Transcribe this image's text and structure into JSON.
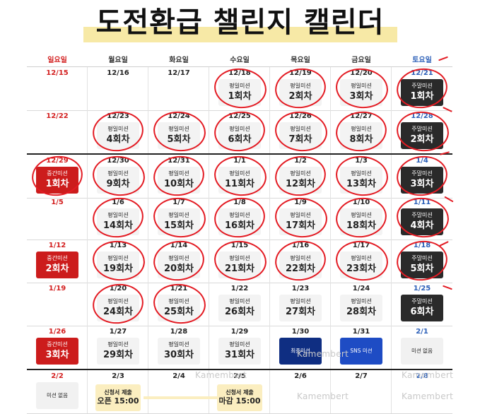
{
  "title": "도전환급 챌린지 캘린더",
  "weekdays": [
    "일요일",
    "월요일",
    "화요일",
    "수요일",
    "목요일",
    "금요일",
    "토요일"
  ],
  "weeks": [
    {
      "dates": [
        "12/15",
        "12/16",
        "12/17",
        "12/18",
        "12/19",
        "12/20",
        "12/21"
      ],
      "missions": [
        null,
        null,
        null,
        {
          "kind": "weekday",
          "label": "평일미션",
          "count": "1회차"
        },
        {
          "kind": "weekday",
          "label": "평일미션",
          "count": "2회차"
        },
        {
          "kind": "weekday",
          "label": "평일미션",
          "count": "3회차"
        },
        {
          "kind": "weekend",
          "label": "주말미션",
          "count": "1회차"
        }
      ]
    },
    {
      "dates": [
        "12/22",
        "12/23",
        "12/24",
        "12/25",
        "12/26",
        "12/27",
        "12/28"
      ],
      "missions": [
        null,
        {
          "kind": "weekday",
          "label": "평일미션",
          "count": "4회차"
        },
        {
          "kind": "weekday",
          "label": "평일미션",
          "count": "5회차"
        },
        {
          "kind": "weekday",
          "label": "평일미션",
          "count": "6회차"
        },
        {
          "kind": "weekday",
          "label": "평일미션",
          "count": "7회차"
        },
        {
          "kind": "weekday",
          "label": "평일미션",
          "count": "8회차"
        },
        {
          "kind": "weekend",
          "label": "주말미션",
          "count": "2회차"
        }
      ]
    },
    {
      "dates": [
        "12/29",
        "12/30",
        "12/31",
        "1/1",
        "1/2",
        "1/3",
        "1/4"
      ],
      "missions": [
        {
          "kind": "midterm",
          "label": "중간미션",
          "count": "1회차"
        },
        {
          "kind": "weekday",
          "label": "평일미션",
          "count": "9회차"
        },
        {
          "kind": "weekday",
          "label": "평일미션",
          "count": "10회차"
        },
        {
          "kind": "weekday",
          "label": "평일미션",
          "count": "11회차"
        },
        {
          "kind": "weekday",
          "label": "평일미션",
          "count": "12회차"
        },
        {
          "kind": "weekday",
          "label": "평일미션",
          "count": "13회차"
        },
        {
          "kind": "weekend",
          "label": "주말미션",
          "count": "3회차"
        }
      ]
    },
    {
      "dates": [
        "1/5",
        "1/6",
        "1/7",
        "1/8",
        "1/9",
        "1/10",
        "1/11"
      ],
      "missions": [
        null,
        {
          "kind": "weekday",
          "label": "평일미션",
          "count": "14회차"
        },
        {
          "kind": "weekday",
          "label": "평일미션",
          "count": "15회차"
        },
        {
          "kind": "weekday",
          "label": "평일미션",
          "count": "16회차"
        },
        {
          "kind": "weekday",
          "label": "평일미션",
          "count": "17회차"
        },
        {
          "kind": "weekday",
          "label": "평일미션",
          "count": "18회차"
        },
        {
          "kind": "weekend",
          "label": "주말미션",
          "count": "4회차"
        }
      ]
    },
    {
      "dates": [
        "1/12",
        "1/13",
        "1/14",
        "1/15",
        "1/16",
        "1/17",
        "1/18"
      ],
      "missions": [
        {
          "kind": "midterm",
          "label": "중간미션",
          "count": "2회차"
        },
        {
          "kind": "weekday",
          "label": "평일미션",
          "count": "19회차"
        },
        {
          "kind": "weekday",
          "label": "평일미션",
          "count": "20회차"
        },
        {
          "kind": "weekday",
          "label": "평일미션",
          "count": "21회차"
        },
        {
          "kind": "weekday",
          "label": "평일미션",
          "count": "22회차"
        },
        {
          "kind": "weekday",
          "label": "평일미션",
          "count": "23회차"
        },
        {
          "kind": "weekend",
          "label": "주말미션",
          "count": "5회차"
        }
      ]
    },
    {
      "dates": [
        "1/19",
        "1/20",
        "1/21",
        "1/22",
        "1/23",
        "1/24",
        "1/25"
      ],
      "missions": [
        null,
        {
          "kind": "weekday",
          "label": "평일미션",
          "count": "24회차"
        },
        {
          "kind": "weekday",
          "label": "평일미션",
          "count": "25회차"
        },
        {
          "kind": "weekday",
          "label": "평일미션",
          "count": "26회차"
        },
        {
          "kind": "weekday",
          "label": "평일미션",
          "count": "27회차"
        },
        {
          "kind": "weekday",
          "label": "평일미션",
          "count": "28회차"
        },
        {
          "kind": "weekend",
          "label": "주말미션",
          "count": "6회차"
        }
      ]
    },
    {
      "dates": [
        "1/26",
        "1/27",
        "1/28",
        "1/29",
        "1/30",
        "1/31",
        "2/1"
      ],
      "missions": [
        {
          "kind": "midterm",
          "label": "중간미션",
          "count": "3회차"
        },
        {
          "kind": "weekday",
          "label": "평일미션",
          "count": "29회차"
        },
        {
          "kind": "weekday",
          "label": "평일미션",
          "count": "30회차"
        },
        {
          "kind": "weekday",
          "label": "평일미션",
          "count": "31회차"
        },
        {
          "kind": "final",
          "label": "최종미션",
          "count": ""
        },
        {
          "kind": "sns",
          "label": "SNS 미션",
          "count": ""
        },
        {
          "kind": "empty",
          "label": "미션 없음",
          "count": ""
        }
      ]
    },
    {
      "dates": [
        "2/2",
        "2/3",
        "2/4",
        "2/5",
        "2/6",
        "2/7",
        "2/8"
      ],
      "missions": [
        {
          "kind": "empty",
          "label": "미션 없음",
          "count": ""
        },
        null,
        null,
        null,
        null,
        null,
        null
      ]
    }
  ],
  "application": {
    "open_label": "신청서 제출",
    "open_time": "오픈 15:00",
    "close_label": "신청서 제출",
    "close_time": "마감 15:00"
  },
  "watermark": "Kamembert",
  "completed": [
    [
      3,
      4,
      5,
      6
    ],
    [
      1,
      2,
      3,
      4,
      5,
      6
    ],
    [
      0,
      1,
      2,
      3,
      4,
      5,
      6
    ],
    [
      1,
      2,
      3,
      4,
      5,
      6
    ],
    [
      1,
      2,
      3,
      4,
      5,
      6
    ],
    [
      1,
      2
    ],
    [],
    []
  ],
  "colors": {
    "sunday": "#d32020",
    "saturday": "#2b5fb8",
    "circle": "#e31b23",
    "title_highlight": "#f7e9a6"
  }
}
